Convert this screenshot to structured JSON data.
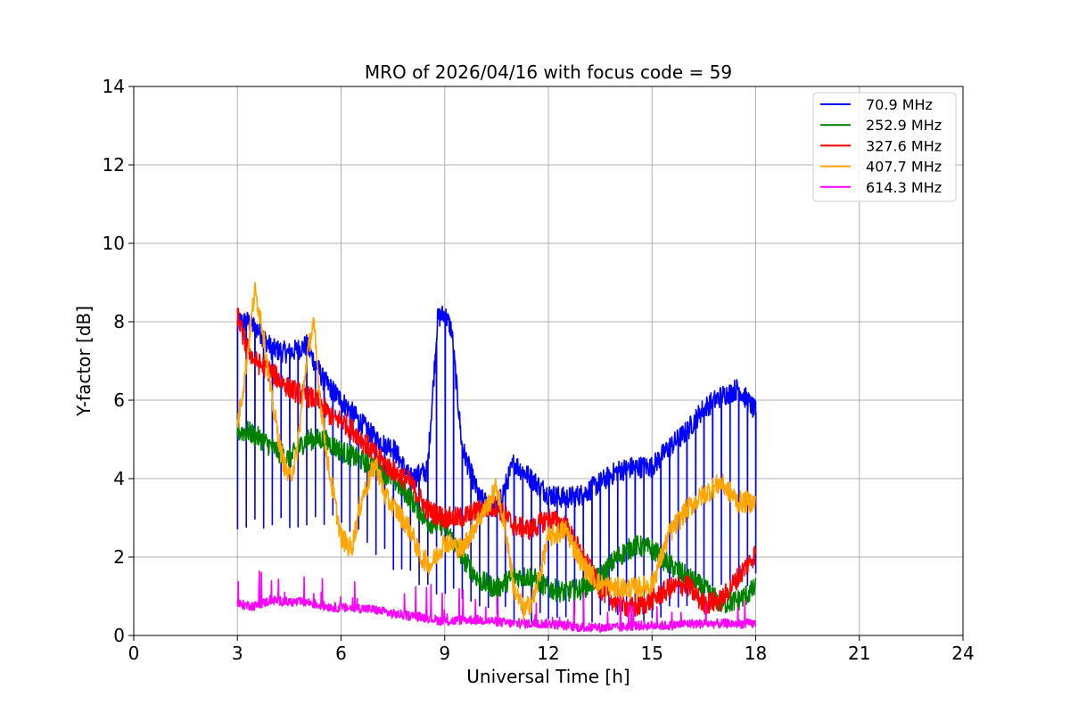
{
  "chart_data": {
    "type": "line",
    "title": "MRO of 2026/04/16 with focus code = 59",
    "xlabel": "Universal Time [h]",
    "ylabel": "Y-factor [dB]",
    "xlim": [
      0,
      24
    ],
    "ylim": [
      0,
      14
    ],
    "xticks": [
      0,
      3,
      6,
      9,
      12,
      15,
      18,
      21,
      24
    ],
    "yticks": [
      0,
      2,
      4,
      6,
      8,
      10,
      12,
      14
    ],
    "grid": true,
    "legend_position": "top-right",
    "series": [
      {
        "name": "70.9 MHz",
        "legend_label": " 70.9 MHz",
        "color": "#0000ff",
        "dip_period_h": 0.25,
        "dip_floor": [
          [
            3.0,
            2.8
          ],
          [
            6.0,
            3.0
          ],
          [
            8.0,
            1.5
          ],
          [
            10.0,
            0.8
          ],
          [
            12.0,
            0.4
          ],
          [
            15.0,
            0.5
          ],
          [
            18.0,
            1.5
          ]
        ],
        "points": [
          [
            3.0,
            8.0
          ],
          [
            3.3,
            8.0
          ],
          [
            3.6,
            7.8
          ],
          [
            4.0,
            7.3
          ],
          [
            4.5,
            7.2
          ],
          [
            5.0,
            7.4
          ],
          [
            5.5,
            6.5
          ],
          [
            6.0,
            6.0
          ],
          [
            6.5,
            5.5
          ],
          [
            7.0,
            5.0
          ],
          [
            7.5,
            4.8
          ],
          [
            8.0,
            4.0
          ],
          [
            8.5,
            4.2
          ],
          [
            8.8,
            8.1
          ],
          [
            9.0,
            8.2
          ],
          [
            9.2,
            7.8
          ],
          [
            9.5,
            4.8
          ],
          [
            10.0,
            3.5
          ],
          [
            10.5,
            3.2
          ],
          [
            11.0,
            4.4
          ],
          [
            11.5,
            4.0
          ],
          [
            12.0,
            3.6
          ],
          [
            12.5,
            3.5
          ],
          [
            13.0,
            3.6
          ],
          [
            13.5,
            3.9
          ],
          [
            14.0,
            4.2
          ],
          [
            14.5,
            4.3
          ],
          [
            15.0,
            4.3
          ],
          [
            15.5,
            4.8
          ],
          [
            16.0,
            5.2
          ],
          [
            16.5,
            5.8
          ],
          [
            17.0,
            6.1
          ],
          [
            17.5,
            6.3
          ],
          [
            18.0,
            5.7
          ]
        ]
      },
      {
        "name": "252.9 MHz",
        "legend_label": "252.9 MHz",
        "color": "#008000",
        "points": [
          [
            3.0,
            5.2
          ],
          [
            3.3,
            5.2
          ],
          [
            3.7,
            5.0
          ],
          [
            4.0,
            4.8
          ],
          [
            4.5,
            4.5
          ],
          [
            5.0,
            5.0
          ],
          [
            5.5,
            5.0
          ],
          [
            6.0,
            4.7
          ],
          [
            6.5,
            4.5
          ],
          [
            7.0,
            4.3
          ],
          [
            7.5,
            4.0
          ],
          [
            8.0,
            3.5
          ],
          [
            8.5,
            2.9
          ],
          [
            9.0,
            2.8
          ],
          [
            9.5,
            2.0
          ],
          [
            10.0,
            1.4
          ],
          [
            10.5,
            1.2
          ],
          [
            11.0,
            1.5
          ],
          [
            11.5,
            1.5
          ],
          [
            12.0,
            1.2
          ],
          [
            12.5,
            1.1
          ],
          [
            13.0,
            1.2
          ],
          [
            13.5,
            1.5
          ],
          [
            14.0,
            2.0
          ],
          [
            14.5,
            2.3
          ],
          [
            15.0,
            2.2
          ],
          [
            15.5,
            1.8
          ],
          [
            16.0,
            1.5
          ],
          [
            16.5,
            1.2
          ],
          [
            17.0,
            0.8
          ],
          [
            17.5,
            0.9
          ],
          [
            18.0,
            1.2
          ]
        ]
      },
      {
        "name": "327.6 MHz",
        "legend_label": "327.6 MHz",
        "color": "#ff0000",
        "points": [
          [
            3.0,
            8.2
          ],
          [
            3.2,
            7.5
          ],
          [
            3.5,
            7.0
          ],
          [
            4.0,
            6.7
          ],
          [
            4.5,
            6.3
          ],
          [
            5.0,
            6.1
          ],
          [
            5.3,
            6.0
          ],
          [
            5.8,
            5.5
          ],
          [
            6.0,
            5.5
          ],
          [
            6.5,
            5.1
          ],
          [
            7.0,
            4.6
          ],
          [
            7.5,
            4.2
          ],
          [
            8.0,
            3.9
          ],
          [
            8.5,
            3.2
          ],
          [
            9.0,
            3.0
          ],
          [
            9.5,
            3.0
          ],
          [
            10.0,
            3.2
          ],
          [
            10.5,
            3.3
          ],
          [
            11.0,
            2.8
          ],
          [
            11.5,
            2.7
          ],
          [
            12.0,
            3.0
          ],
          [
            12.5,
            2.8
          ],
          [
            13.0,
            2.0
          ],
          [
            13.5,
            1.2
          ],
          [
            14.0,
            0.8
          ],
          [
            14.5,
            0.7
          ],
          [
            15.0,
            0.9
          ],
          [
            15.5,
            1.2
          ],
          [
            16.0,
            1.3
          ],
          [
            16.5,
            0.8
          ],
          [
            17.0,
            0.9
          ],
          [
            17.5,
            1.5
          ],
          [
            18.0,
            2.1
          ]
        ]
      },
      {
        "name": "407.7 MHz",
        "legend_label": "407.7 MHz",
        "color": "#ffa500",
        "points": [
          [
            3.0,
            5.4
          ],
          [
            3.2,
            6.5
          ],
          [
            3.5,
            8.8
          ],
          [
            3.7,
            8.0
          ],
          [
            4.0,
            6.0
          ],
          [
            4.3,
            4.5
          ],
          [
            4.5,
            4.0
          ],
          [
            4.7,
            4.5
          ],
          [
            5.0,
            7.0
          ],
          [
            5.2,
            8.0
          ],
          [
            5.4,
            6.0
          ],
          [
            5.6,
            4.5
          ],
          [
            6.0,
            2.5
          ],
          [
            6.3,
            2.2
          ],
          [
            6.6,
            3.5
          ],
          [
            7.0,
            4.4
          ],
          [
            7.3,
            3.5
          ],
          [
            7.6,
            3.2
          ],
          [
            8.0,
            2.7
          ],
          [
            8.3,
            2.0
          ],
          [
            8.6,
            1.8
          ],
          [
            9.0,
            2.4
          ],
          [
            9.5,
            2.2
          ],
          [
            10.0,
            3.0
          ],
          [
            10.3,
            3.4
          ],
          [
            10.5,
            3.8
          ],
          [
            10.8,
            2.5
          ],
          [
            11.0,
            1.2
          ],
          [
            11.3,
            0.6
          ],
          [
            11.6,
            1.0
          ],
          [
            12.0,
            2.5
          ],
          [
            12.5,
            2.7
          ],
          [
            13.0,
            1.8
          ],
          [
            13.5,
            1.3
          ],
          [
            14.0,
            1.2
          ],
          [
            14.5,
            1.2
          ],
          [
            15.0,
            1.3
          ],
          [
            15.5,
            2.6
          ],
          [
            16.0,
            3.2
          ],
          [
            16.5,
            3.6
          ],
          [
            17.0,
            3.9
          ],
          [
            17.5,
            3.4
          ],
          [
            18.0,
            3.4
          ]
        ]
      },
      {
        "name": "614.3 MHz",
        "legend_label": "614.3 MHz",
        "color": "#ff00ff",
        "points": [
          [
            3.0,
            0.8
          ],
          [
            3.5,
            0.75
          ],
          [
            4.0,
            0.9
          ],
          [
            4.5,
            0.85
          ],
          [
            5.0,
            0.85
          ],
          [
            5.5,
            0.75
          ],
          [
            6.0,
            0.7
          ],
          [
            6.5,
            0.7
          ],
          [
            7.0,
            0.65
          ],
          [
            7.5,
            0.55
          ],
          [
            8.0,
            0.5
          ],
          [
            8.5,
            0.45
          ],
          [
            9.0,
            0.35
          ],
          [
            9.5,
            0.4
          ],
          [
            10.0,
            0.4
          ],
          [
            10.5,
            0.35
          ],
          [
            11.0,
            0.3
          ],
          [
            11.5,
            0.3
          ],
          [
            12.0,
            0.3
          ],
          [
            12.5,
            0.25
          ],
          [
            13.0,
            0.2
          ],
          [
            13.5,
            0.2
          ],
          [
            14.0,
            0.2
          ],
          [
            14.5,
            0.25
          ],
          [
            15.0,
            0.25
          ],
          [
            15.5,
            0.25
          ],
          [
            16.0,
            0.3
          ],
          [
            16.5,
            0.3
          ],
          [
            17.0,
            0.3
          ],
          [
            17.5,
            0.3
          ],
          [
            18.0,
            0.3
          ]
        ]
      }
    ]
  }
}
